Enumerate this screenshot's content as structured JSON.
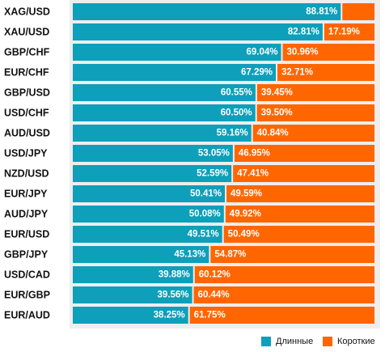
{
  "chart_data": {
    "type": "bar",
    "orientation": "horizontal",
    "stacked": true,
    "categories": [
      "XAG/USD",
      "XAU/USD",
      "GBP/CHF",
      "EUR/CHF",
      "GBP/USD",
      "USD/CHF",
      "AUD/USD",
      "USD/JPY",
      "NZD/USD",
      "EUR/JPY",
      "AUD/JPY",
      "EUR/USD",
      "GBP/JPY",
      "USD/CAD",
      "EUR/GBP",
      "EUR/AUD"
    ],
    "series": [
      {
        "name": "Длинные",
        "color": "#0e9fba",
        "values": [
          88.81,
          82.81,
          69.04,
          67.29,
          60.55,
          60.5,
          59.16,
          53.05,
          52.59,
          50.41,
          50.08,
          49.51,
          45.13,
          39.88,
          39.56,
          38.25
        ],
        "labels": [
          "88.81%",
          "82.81%",
          "69.04%",
          "67.29%",
          "60.55%",
          "60.50%",
          "59.16%",
          "53.05%",
          "52.59%",
          "50.41%",
          "50.08%",
          "49.51%",
          "45.13%",
          "39.88%",
          "39.56%",
          "38.25%"
        ]
      },
      {
        "name": "Короткие",
        "color": "#ff6600",
        "values": [
          11.19,
          17.19,
          30.96,
          32.71,
          39.45,
          39.5,
          40.84,
          46.95,
          47.41,
          49.59,
          49.92,
          50.49,
          54.87,
          60.12,
          60.44,
          61.75
        ],
        "labels": [
          "",
          "17.19%",
          "30.96%",
          "32.71%",
          "39.45%",
          "39.50%",
          "40.84%",
          "46.95%",
          "47.41%",
          "49.59%",
          "49.92%",
          "50.49%",
          "54.87%",
          "60.12%",
          "60.44%",
          "61.75%"
        ]
      }
    ],
    "xlim": [
      0,
      100
    ],
    "grid": false,
    "legend": "bottom-right"
  }
}
